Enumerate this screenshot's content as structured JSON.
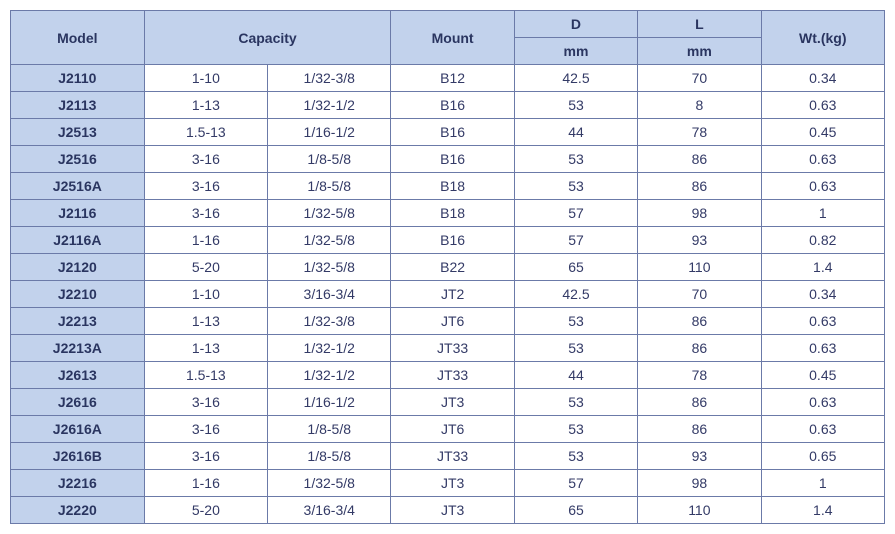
{
  "headers": {
    "model": "Model",
    "capacity": "Capacity",
    "mount": "Mount",
    "d": "D",
    "l": "L",
    "wt": "Wt.(kg)",
    "mm": "mm"
  },
  "rows": [
    {
      "model": "J2110",
      "cap1": "1-10",
      "cap2": "1/32-3/8",
      "mount": "B12",
      "d": "42.5",
      "l": "70",
      "wt": "0.34"
    },
    {
      "model": "J2113",
      "cap1": "1-13",
      "cap2": "1/32-1/2",
      "mount": "B16",
      "d": "53",
      "l": "8",
      "wt": "0.63"
    },
    {
      "model": "J2513",
      "cap1": "1.5-13",
      "cap2": "1/16-1/2",
      "mount": "B16",
      "d": "44",
      "l": "78",
      "wt": "0.45"
    },
    {
      "model": "J2516",
      "cap1": "3-16",
      "cap2": "1/8-5/8",
      "mount": "B16",
      "d": "53",
      "l": "86",
      "wt": "0.63"
    },
    {
      "model": "J2516A",
      "cap1": "3-16",
      "cap2": "1/8-5/8",
      "mount": "B18",
      "d": "53",
      "l": "86",
      "wt": "0.63"
    },
    {
      "model": "J2116",
      "cap1": "3-16",
      "cap2": "1/32-5/8",
      "mount": "B18",
      "d": "57",
      "l": "98",
      "wt": "1"
    },
    {
      "model": "J2116A",
      "cap1": "1-16",
      "cap2": "1/32-5/8",
      "mount": "B16",
      "d": "57",
      "l": "93",
      "wt": "0.82"
    },
    {
      "model": "J2120",
      "cap1": "5-20",
      "cap2": "1/32-5/8",
      "mount": "B22",
      "d": "65",
      "l": "110",
      "wt": "1.4"
    },
    {
      "model": "J2210",
      "cap1": "1-10",
      "cap2": "3/16-3/4",
      "mount": "JT2",
      "d": "42.5",
      "l": "70",
      "wt": "0.34"
    },
    {
      "model": "J2213",
      "cap1": "1-13",
      "cap2": "1/32-3/8",
      "mount": "JT6",
      "d": "53",
      "l": "86",
      "wt": "0.63"
    },
    {
      "model": "J2213A",
      "cap1": "1-13",
      "cap2": "1/32-1/2",
      "mount": "JT33",
      "d": "53",
      "l": "86",
      "wt": "0.63"
    },
    {
      "model": "J2613",
      "cap1": "1.5-13",
      "cap2": "1/32-1/2",
      "mount": "JT33",
      "d": "44",
      "l": "78",
      "wt": "0.45"
    },
    {
      "model": "J2616",
      "cap1": "3-16",
      "cap2": "1/16-1/2",
      "mount": "JT3",
      "d": "53",
      "l": "86",
      "wt": "0.63"
    },
    {
      "model": "J2616A",
      "cap1": "3-16",
      "cap2": "1/8-5/8",
      "mount": "JT6",
      "d": "53",
      "l": "86",
      "wt": "0.63"
    },
    {
      "model": "J2616B",
      "cap1": "3-16",
      "cap2": "1/8-5/8",
      "mount": "JT33",
      "d": "53",
      "l": "93",
      "wt": "0.65"
    },
    {
      "model": "J2216",
      "cap1": "1-16",
      "cap2": "1/32-5/8",
      "mount": "JT3",
      "d": "57",
      "l": "98",
      "wt": "1"
    },
    {
      "model": "J2220",
      "cap1": "5-20",
      "cap2": "3/16-3/4",
      "mount": "JT3",
      "d": "65",
      "l": "110",
      "wt": "1.4"
    }
  ]
}
